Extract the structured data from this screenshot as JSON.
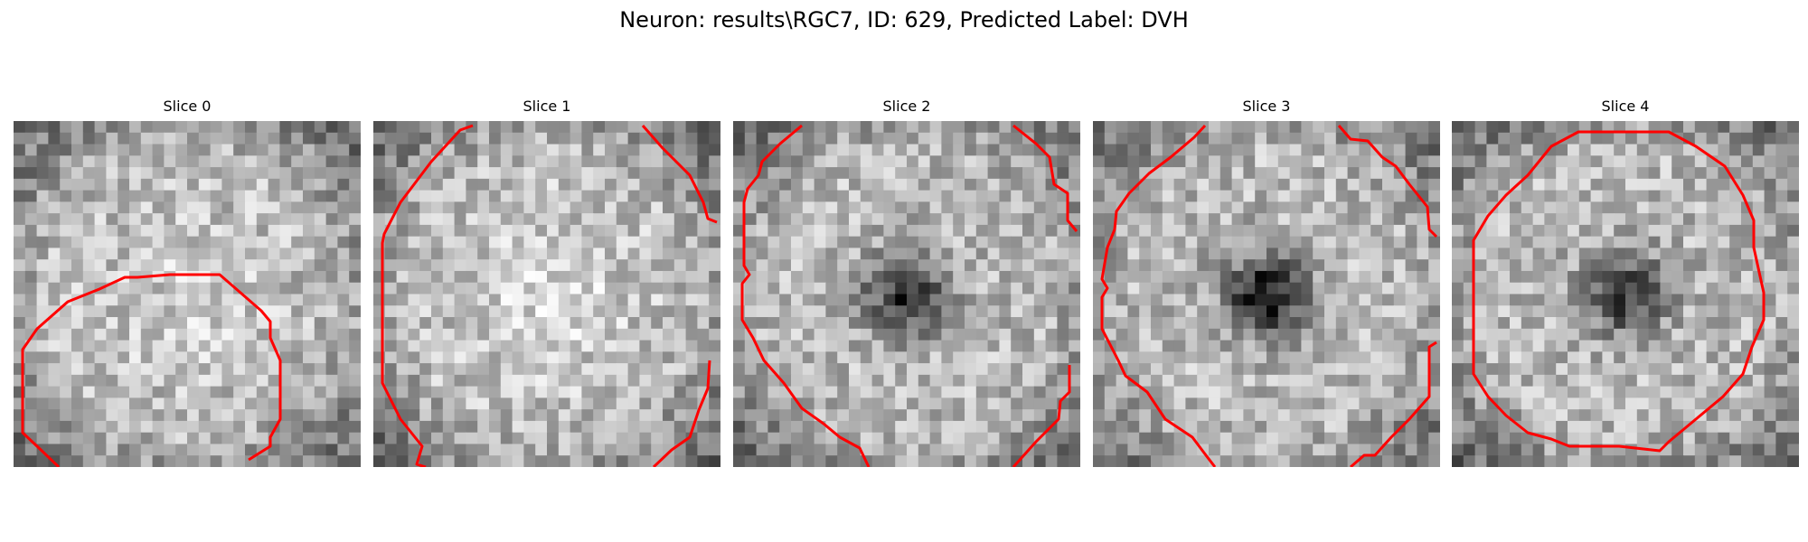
{
  "figure": {
    "title": "Neuron: results\\RGC7, ID: 629, Predicted Label: DVH",
    "contour_color": "#ff0000",
    "colormap": "grayscale",
    "grid_size": 30,
    "slices": [
      {
        "title": "Slice 0",
        "dark_center": 0,
        "bright_center": 0.08,
        "seed": 11
      },
      {
        "title": "Slice 1",
        "dark_center": 0,
        "bright_center": 0.12,
        "seed": 23
      },
      {
        "title": "Slice 2",
        "dark_center": 0.55,
        "bright_center": 0,
        "seed": 37
      },
      {
        "title": "Slice 3",
        "dark_center": 0.65,
        "bright_center": 0,
        "seed": 51
      },
      {
        "title": "Slice 4",
        "dark_center": 0.5,
        "bright_center": 0,
        "seed": 67
      }
    ]
  }
}
